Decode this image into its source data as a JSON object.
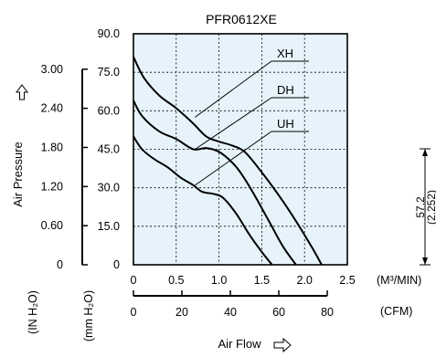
{
  "chart_data": {
    "type": "line",
    "title": "PFR0612XE",
    "ylabel": "Air Pressure",
    "xlabel": "Air Flow",
    "x_primary": {
      "unit": "(M³/MIN)",
      "range": [
        0,
        2.5
      ],
      "ticks": [
        0,
        0.5,
        1.0,
        1.5,
        2.0,
        2.5
      ],
      "tick_labels": [
        "0",
        "0.5",
        "1.0",
        "1.5",
        "2.0",
        "2.5"
      ]
    },
    "x_secondary": {
      "unit": "(CFM)",
      "ticks": [
        0,
        20,
        40,
        60,
        80
      ],
      "tick_labels": [
        "0",
        "20",
        "40",
        "60",
        "80"
      ],
      "cfm_per_m3min": 35.315
    },
    "y_mmH2O": {
      "unit": "(mm H₂O)",
      "range": [
        0,
        90
      ],
      "ticks": [
        0,
        15,
        30,
        45,
        60,
        75,
        90
      ],
      "tick_labels": [
        "0",
        "15.0",
        "30.0",
        "45.0",
        "60.0",
        "75.0",
        "90.0"
      ]
    },
    "y_inH2O": {
      "unit": "(IN H₂O)",
      "ticks": [
        0,
        0.6,
        1.2,
        1.8,
        2.4,
        3.0
      ],
      "tick_labels": [
        "0",
        "0.60",
        "1.20",
        "1.80",
        "2.40",
        "3.00"
      ],
      "mm_per_in": 25.4
    },
    "grid": true,
    "background": "#e6f3fb",
    "series": [
      {
        "name": "XH",
        "x": [
          0,
          0.12,
          0.3,
          0.5,
          0.7,
          0.85,
          1.0,
          1.15,
          1.3,
          1.5,
          1.7,
          1.9,
          2.1,
          2.2
        ],
        "y": [
          81,
          73,
          66,
          61,
          55,
          50,
          48,
          46.5,
          44,
          36,
          27,
          17,
          6,
          0
        ]
      },
      {
        "name": "DH",
        "x": [
          0,
          0.1,
          0.3,
          0.5,
          0.7,
          0.85,
          1.0,
          1.15,
          1.25,
          1.4,
          1.6,
          1.75,
          1.9
        ],
        "y": [
          64,
          58,
          52,
          49,
          45,
          45.5,
          44,
          40,
          36,
          28,
          16,
          7,
          0
        ]
      },
      {
        "name": "UH",
        "x": [
          0,
          0.1,
          0.25,
          0.4,
          0.55,
          0.7,
          0.8,
          0.95,
          1.05,
          1.2,
          1.35,
          1.5,
          1.62
        ],
        "y": [
          50,
          45,
          41,
          38,
          34,
          31,
          28.5,
          27.5,
          26,
          20,
          12,
          5,
          0
        ]
      }
    ],
    "annotations": [
      {
        "text": "57.2"
      },
      {
        "text": "(2.252)"
      }
    ]
  }
}
